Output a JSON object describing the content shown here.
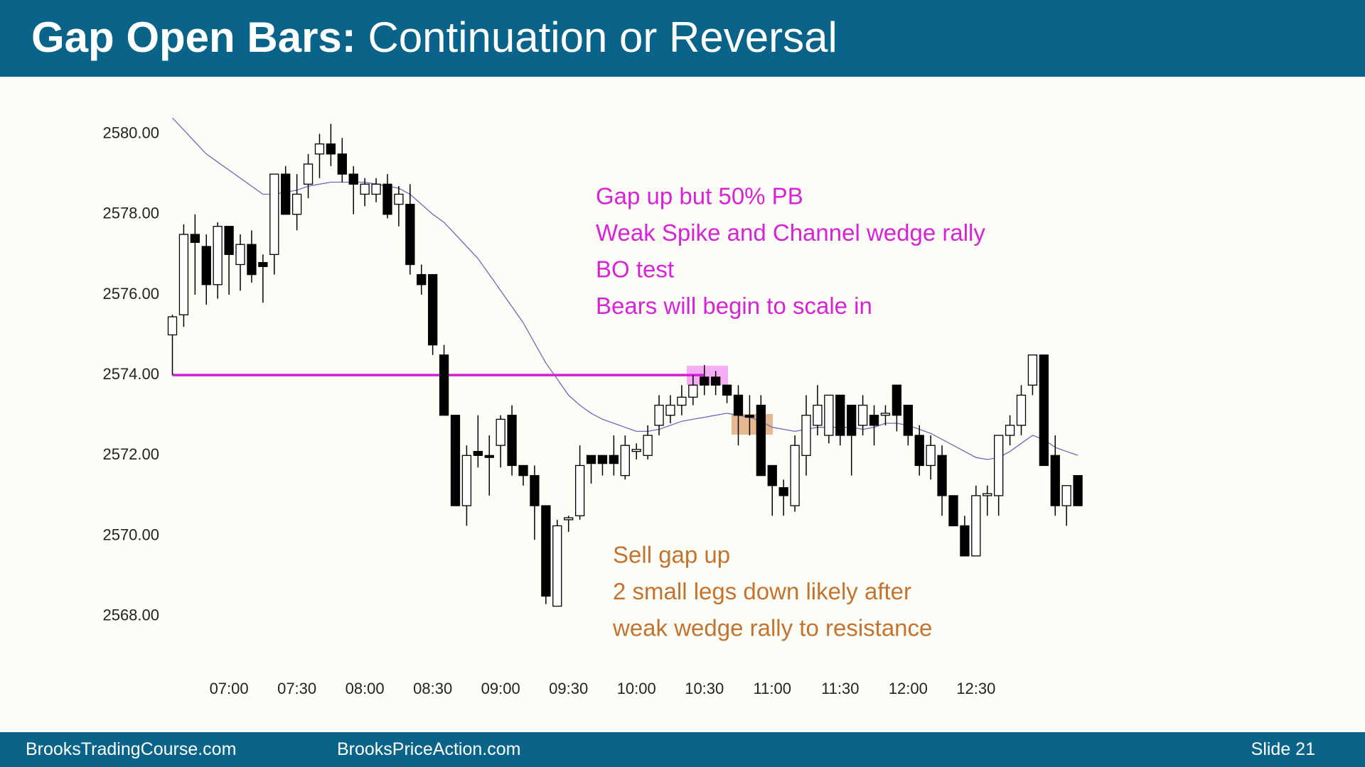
{
  "header": {
    "title_bold": "Gap Open Bars:",
    "title_rest": "Continuation or Reversal"
  },
  "footer": {
    "left": "BrooksTradingCourse.com",
    "middle": "BrooksPriceAction.com",
    "right": "Slide  21"
  },
  "chart_data": {
    "type": "candlestick",
    "categories": [
      null,
      null,
      null,
      null,
      null,
      "07:00",
      null,
      null,
      null,
      null,
      null,
      "07:30",
      null,
      null,
      null,
      null,
      null,
      "08:00",
      null,
      null,
      null,
      null,
      null,
      "08:30",
      null,
      null,
      null,
      null,
      null,
      "09:00",
      null,
      null,
      null,
      null,
      null,
      "09:30",
      null,
      null,
      null,
      null,
      null,
      "10:00",
      null,
      null,
      null,
      null,
      null,
      "10:30",
      null,
      null,
      null,
      null,
      null,
      "11:00",
      null,
      null,
      null,
      null,
      null,
      "11:30",
      null,
      null,
      null,
      null,
      null,
      "12:00",
      null,
      null,
      null,
      null,
      null,
      "12:30",
      null,
      null,
      null,
      null,
      null,
      null,
      null,
      null,
      null
    ],
    "open": [
      2575.0,
      2575.5,
      2577.5,
      2577.2,
      2576.25,
      2577.7,
      2576.75,
      2577.25,
      2576.8,
      2577.0,
      2579.0,
      2578.0,
      2578.75,
      2579.5,
      2579.75,
      2579.5,
      2579.0,
      2578.5,
      2578.5,
      2578.75,
      2578.25,
      2578.25,
      2576.5,
      2576.5,
      2574.5,
      2573.0,
      2570.75,
      2572.1,
      2572.0,
      2572.25,
      2573.0,
      2571.75,
      2571.5,
      2570.75,
      2568.25,
      2570.4,
      2570.5,
      2572.0,
      2572.0,
      2572.0,
      2571.5,
      2572.1,
      2572.0,
      2572.75,
      2573.0,
      2573.25,
      2573.45,
      2573.95,
      2573.95,
      2573.75,
      2573.5,
      2573.0,
      2573.25,
      2571.75,
      2571.2,
      2570.75,
      2572.0,
      2572.75,
      2572.5,
      2573.5,
      2573.25,
      2572.75,
      2573.0,
      2573.0,
      2573.75,
      2573.25,
      2572.5,
      2571.75,
      2572.0,
      2571.0,
      2570.25,
      2569.5,
      2571.0,
      2571.0,
      2572.5,
      2572.75,
      2573.75,
      2574.5,
      2572.0,
      2570.75,
      2571.5
    ],
    "high": [
      2575.5,
      2577.75,
      2578.0,
      2577.5,
      2577.8,
      2577.7,
      2577.5,
      2577.6,
      2577.0,
      2579.0,
      2579.2,
      2579.0,
      2579.5,
      2580.0,
      2580.25,
      2579.9,
      2579.2,
      2578.9,
      2578.9,
      2579.0,
      2578.7,
      2578.75,
      2576.75,
      2576.5,
      2574.75,
      2573.0,
      2572.25,
      2573.0,
      2572.5,
      2573.0,
      2573.25,
      2571.75,
      2571.75,
      2570.75,
      2570.4,
      2570.5,
      2572.25,
      2572.0,
      2572.0,
      2572.5,
      2572.5,
      2572.3,
      2572.75,
      2573.5,
      2573.5,
      2573.75,
      2574.0,
      2574.25,
      2574.1,
      2573.75,
      2573.75,
      2573.5,
      2573.5,
      2571.75,
      2571.4,
      2572.5,
      2573.5,
      2573.75,
      2573.5,
      2573.5,
      2573.25,
      2573.5,
      2573.25,
      2573.25,
      2573.75,
      2573.25,
      2572.75,
      2572.5,
      2572.25,
      2571.0,
      2570.5,
      2571.25,
      2571.25,
      2572.5,
      2573.0,
      2573.75,
      2574.5,
      2574.5,
      2572.5,
      2571.25,
      2571.5
    ],
    "low": [
      2574.0,
      2575.2,
      2576.0,
      2575.75,
      2575.9,
      2576.0,
      2576.1,
      2576.3,
      2575.8,
      2576.5,
      2578.0,
      2577.6,
      2578.4,
      2578.9,
      2579.2,
      2578.8,
      2578.0,
      2578.2,
      2578.3,
      2577.9,
      2577.7,
      2576.5,
      2576.0,
      2574.5,
      2573.0,
      2570.75,
      2570.25,
      2571.7,
      2571.0,
      2571.7,
      2571.5,
      2571.25,
      2569.9,
      2568.3,
      2568.25,
      2570.1,
      2570.4,
      2571.3,
      2571.5,
      2571.5,
      2571.4,
      2571.9,
      2571.9,
      2572.5,
      2572.8,
      2573.0,
      2573.25,
      2573.5,
      2573.5,
      2573.3,
      2572.25,
      2572.5,
      2571.5,
      2570.5,
      2570.5,
      2570.6,
      2571.5,
      2572.5,
      2572.3,
      2572.25,
      2571.5,
      2572.5,
      2572.25,
      2572.75,
      2572.6,
      2572.25,
      2571.5,
      2571.4,
      2570.5,
      2570.25,
      2569.5,
      2569.5,
      2570.5,
      2570.5,
      2572.25,
      2572.5,
      2573.5,
      2571.75,
      2570.5,
      2570.25,
      2570.75
    ],
    "close": [
      2575.45,
      2577.5,
      2577.3,
      2576.25,
      2577.7,
      2577.0,
      2577.25,
      2576.5,
      2576.7,
      2579.0,
      2578.0,
      2578.5,
      2579.25,
      2579.75,
      2579.5,
      2579.0,
      2578.75,
      2578.75,
      2578.75,
      2578.0,
      2578.5,
      2576.75,
      2576.25,
      2574.75,
      2573.0,
      2570.75,
      2572.0,
      2572.0,
      2571.95,
      2572.9,
      2571.75,
      2571.5,
      2570.75,
      2568.5,
      2570.25,
      2570.45,
      2571.75,
      2571.8,
      2571.8,
      2571.8,
      2572.25,
      2572.15,
      2572.5,
      2573.25,
      2573.25,
      2573.45,
      2573.75,
      2573.75,
      2573.75,
      2573.5,
      2573.0,
      2572.95,
      2571.5,
      2571.25,
      2571.0,
      2572.25,
      2573.0,
      2573.25,
      2573.5,
      2572.5,
      2572.5,
      2573.25,
      2572.75,
      2573.05,
      2573.0,
      2572.5,
      2571.75,
      2572.25,
      2571.0,
      2570.25,
      2569.5,
      2571.0,
      2571.05,
      2572.5,
      2572.75,
      2573.5,
      2574.5,
      2571.75,
      2570.75,
      2571.25,
      2570.75
    ],
    "ema": {
      "color": "#6a6ab8",
      "values": [
        2580.4,
        2580.1,
        2579.8,
        2579.5,
        2579.3,
        2579.1,
        2578.9,
        2578.7,
        2578.5,
        2578.5,
        2578.55,
        2578.6,
        2578.7,
        2578.75,
        2578.8,
        2578.8,
        2578.8,
        2578.8,
        2578.75,
        2578.7,
        2578.65,
        2578.5,
        2578.25,
        2578.0,
        2577.8,
        2577.5,
        2577.2,
        2576.9,
        2576.5,
        2576.1,
        2575.7,
        2575.3,
        2574.8,
        2574.3,
        2573.9,
        2573.5,
        2573.25,
        2573.05,
        2572.9,
        2572.8,
        2572.7,
        2572.6,
        2572.6,
        2572.65,
        2572.75,
        2572.85,
        2572.9,
        2572.95,
        2573.0,
        2573.05,
        2573.0,
        2572.95,
        2572.85,
        2572.7,
        2572.65,
        2572.6,
        2572.65,
        2572.7,
        2572.7,
        2572.7,
        2572.7,
        2572.65,
        2572.7,
        2572.8,
        2572.8,
        2572.75,
        2572.65,
        2572.55,
        2572.4,
        2572.25,
        2572.1,
        2571.95,
        2571.9,
        2571.95,
        2572.1,
        2572.3,
        2572.5,
        2572.4,
        2572.2,
        2572.1,
        2572.0
      ]
    },
    "hline": {
      "value": 2574,
      "color": "#d41fd6"
    },
    "ylim": [
      2567.5,
      2580.6
    ],
    "yticks": [
      {
        "value": 2568,
        "label": "2568.00"
      },
      {
        "value": 2570,
        "label": "2570.00"
      },
      {
        "value": 2572,
        "label": "2572.00"
      },
      {
        "value": 2574,
        "label": "2574.00"
      },
      {
        "value": 2576,
        "label": "2576.00"
      },
      {
        "value": 2578,
        "label": "2578.00"
      },
      {
        "value": 2580,
        "label": "2580.00"
      }
    ],
    "up_color": "#ffffff",
    "down_color": "#000000",
    "annotations": [
      {
        "color": "#d822d8",
        "lines": [
          "Gap up but 50% PB",
          "Weak Spike and Channel wedge rally",
          "BO test",
          "Bears will begin to scale in"
        ]
      },
      {
        "color": "#c4732e",
        "lines": [
          "Sell gap up",
          "2 small legs down likely after",
          "weak wedge rally to resistance"
        ]
      }
    ]
  }
}
